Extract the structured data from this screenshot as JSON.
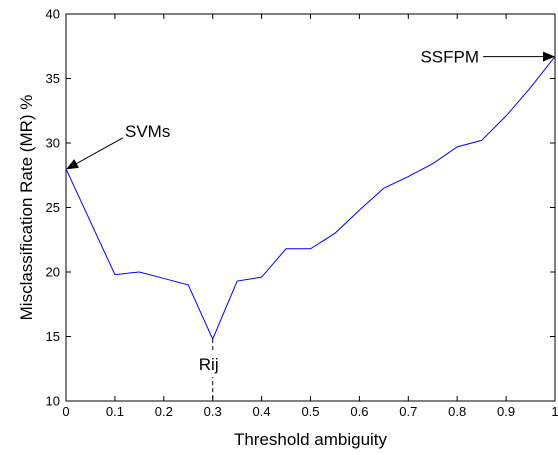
{
  "chart_data": {
    "type": "line",
    "title": "",
    "xlabel": "Threshold ambiguity",
    "ylabel": "Misclassification Rate (MR) %",
    "xlim": [
      0,
      1
    ],
    "ylim": [
      10,
      40
    ],
    "grid": false,
    "x_ticks": [
      0,
      0.1,
      0.2,
      0.3,
      0.4,
      0.5,
      0.6,
      0.7,
      0.8,
      0.9,
      1
    ],
    "x_tick_labels": [
      "0",
      "0.1",
      "0.2",
      "0.3",
      "0.4",
      "0.5",
      "0.6",
      "0.7",
      "0.8",
      "0.9",
      "1"
    ],
    "y_ticks": [
      10,
      15,
      20,
      25,
      30,
      35,
      40
    ],
    "y_tick_labels": [
      "10",
      "15",
      "20",
      "25",
      "30",
      "35",
      "40"
    ],
    "series": [
      {
        "color": "#0000ff",
        "x": [
          0,
          0.1,
          0.15,
          0.2,
          0.25,
          0.3,
          0.35,
          0.4,
          0.45,
          0.5,
          0.55,
          0.6,
          0.65,
          0.7,
          0.75,
          0.8,
          0.85,
          0.9,
          0.95,
          1.0
        ],
        "y": [
          28.0,
          19.8,
          20.0,
          19.5,
          19.0,
          14.8,
          19.3,
          19.6,
          21.8,
          21.8,
          23.0,
          24.8,
          26.5,
          27.4,
          28.4,
          29.7,
          30.2,
          32.1,
          34.3,
          36.7
        ]
      }
    ],
    "annotations": [
      {
        "text": "SVMs",
        "kind": "arrow",
        "x": 0,
        "y": 28.0
      },
      {
        "text": "SSFPM",
        "kind": "arrow",
        "x": 1,
        "y": 36.7
      },
      {
        "text": "Rij",
        "kind": "dashed-drop",
        "x": 0.3,
        "y": 14.8
      }
    ]
  }
}
